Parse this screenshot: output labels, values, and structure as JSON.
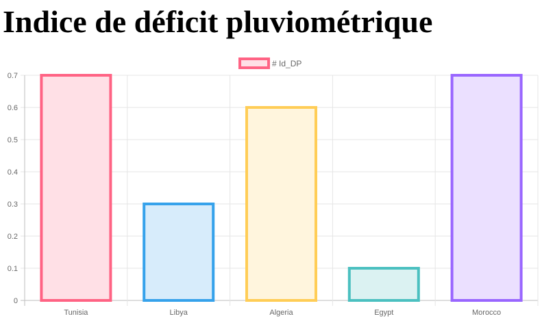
{
  "page": {
    "title": "Indice de déficit pluviométrique"
  },
  "chart_data": {
    "type": "bar",
    "title": "",
    "categories": [
      "Tunisia",
      "Libya",
      "Algeria",
      "Egypt",
      "Morocco"
    ],
    "series": [
      {
        "name": "# Id_DP",
        "values": [
          0.7,
          0.3,
          0.6,
          0.1,
          0.7
        ]
      }
    ],
    "ylim": [
      0,
      0.7
    ],
    "yticks": [
      "0",
      "0.1",
      "0.2",
      "0.3",
      "0.4",
      "0.5",
      "0.6",
      "0.7"
    ],
    "grid": true,
    "legend_position": "top",
    "colors": {
      "border": [
        "#ff6384",
        "#36a2eb",
        "#ffcd56",
        "#4bc0c0",
        "#9966ff"
      ],
      "fill": [
        "#ffe0e6",
        "#d7ecfb",
        "#fff5dd",
        "#dbf2f2",
        "#ebe0ff"
      ],
      "grid": "#e5e5e5",
      "axis": "#bdbdbd"
    }
  }
}
